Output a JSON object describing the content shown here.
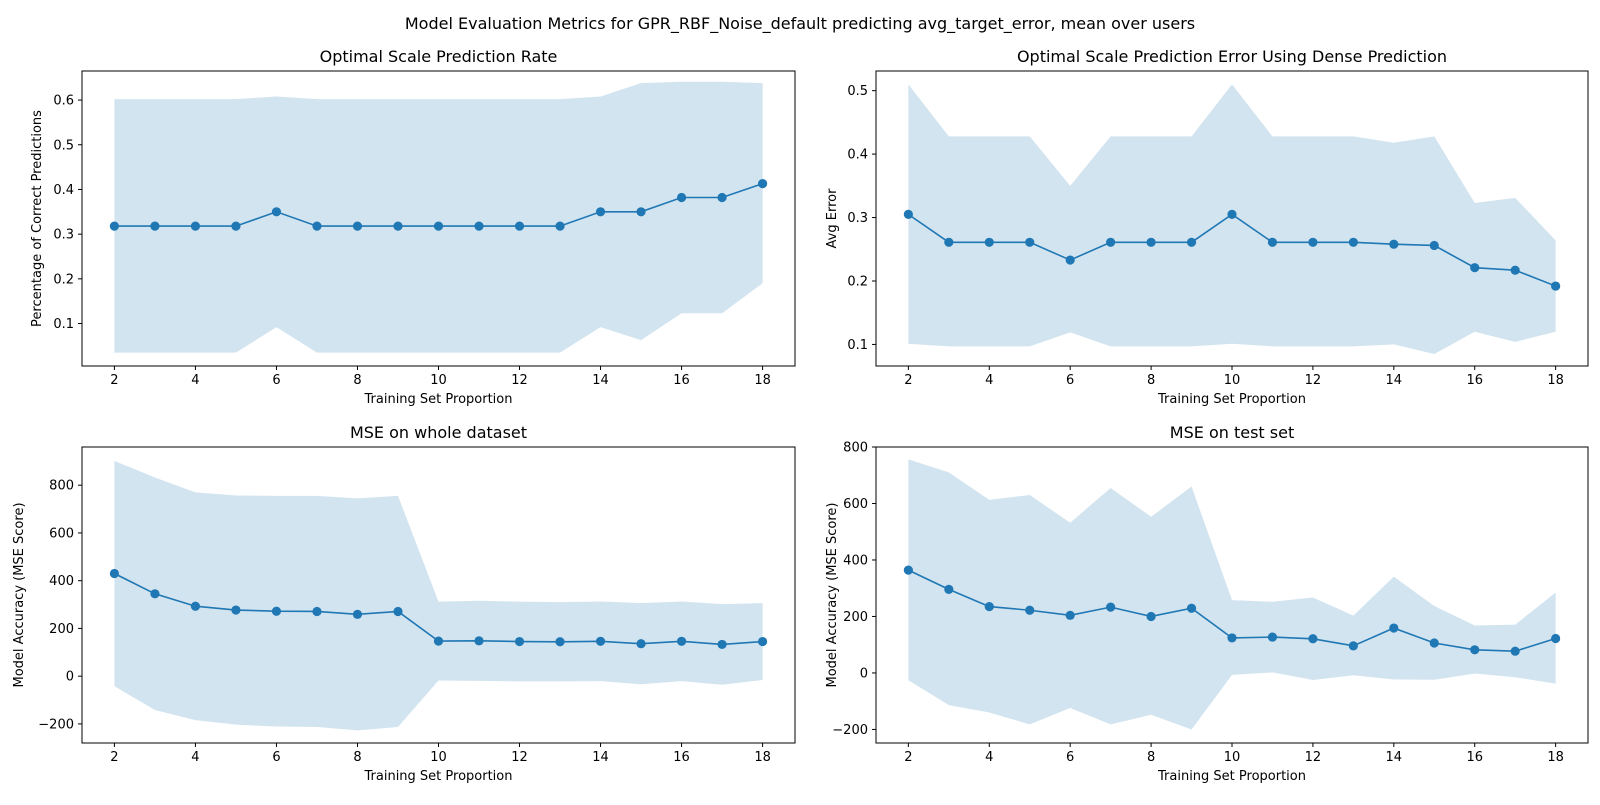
{
  "figure": {
    "title": "Model Evaluation Metrics for GPR_RBF_Noise_default predicting avg_target_error, mean over users"
  },
  "colors": {
    "line": "#1f77b4",
    "band": "#1f77b4",
    "band_opacity": 0.2,
    "axes": "#000000",
    "background": "#ffffff"
  },
  "chart_data": [
    {
      "type": "line",
      "title": "Optimal Scale Prediction Rate",
      "xlabel": "Training Set Proportion",
      "ylabel": "Percentage of Correct Predictions",
      "xlim": [
        1.2,
        18.8
      ],
      "ylim": [
        0.005,
        0.665
      ],
      "xticks": [
        2,
        4,
        6,
        8,
        10,
        12,
        14,
        16,
        18
      ],
      "yticks": [
        0.1,
        0.2,
        0.3,
        0.4,
        0.5,
        0.6
      ],
      "ytick_labels": [
        "0.1",
        "0.2",
        "0.3",
        "0.4",
        "0.5",
        "0.6"
      ],
      "grid": false,
      "x": [
        2,
        3,
        4,
        5,
        6,
        7,
        8,
        9,
        10,
        11,
        12,
        13,
        14,
        15,
        16,
        17,
        18
      ],
      "series": [
        {
          "values": [
            0.318,
            0.318,
            0.318,
            0.318,
            0.35,
            0.318,
            0.318,
            0.318,
            0.318,
            0.318,
            0.318,
            0.318,
            0.35,
            0.35,
            0.382,
            0.382,
            0.413
          ],
          "upper": [
            0.602,
            0.602,
            0.602,
            0.602,
            0.608,
            0.602,
            0.602,
            0.602,
            0.602,
            0.602,
            0.602,
            0.602,
            0.608,
            0.638,
            0.641,
            0.641,
            0.638
          ],
          "lower": [
            0.035,
            0.035,
            0.035,
            0.035,
            0.092,
            0.035,
            0.035,
            0.035,
            0.035,
            0.035,
            0.035,
            0.035,
            0.092,
            0.063,
            0.123,
            0.123,
            0.19
          ]
        }
      ]
    },
    {
      "type": "line",
      "title": "Optimal Scale Prediction Error Using Dense Prediction",
      "xlabel": "Training Set Proportion",
      "ylabel": "Avg Error",
      "xlim": [
        1.2,
        18.8
      ],
      "ylim": [
        0.066,
        0.531
      ],
      "xticks": [
        2,
        4,
        6,
        8,
        10,
        12,
        14,
        16,
        18
      ],
      "yticks": [
        0.1,
        0.2,
        0.3,
        0.4,
        0.5
      ],
      "ytick_labels": [
        "0.1",
        "0.2",
        "0.3",
        "0.4",
        "0.5"
      ],
      "grid": false,
      "x": [
        2,
        3,
        4,
        5,
        6,
        7,
        8,
        9,
        10,
        11,
        12,
        13,
        14,
        15,
        16,
        17,
        18
      ],
      "series": [
        {
          "values": [
            0.305,
            0.261,
            0.261,
            0.261,
            0.233,
            0.261,
            0.261,
            0.261,
            0.305,
            0.261,
            0.261,
            0.261,
            0.258,
            0.256,
            0.221,
            0.217,
            0.192
          ],
          "upper": [
            0.51,
            0.428,
            0.428,
            0.428,
            0.35,
            0.428,
            0.428,
            0.428,
            0.51,
            0.428,
            0.428,
            0.428,
            0.418,
            0.428,
            0.323,
            0.331,
            0.264
          ],
          "lower": [
            0.101,
            0.097,
            0.097,
            0.097,
            0.119,
            0.097,
            0.097,
            0.097,
            0.101,
            0.097,
            0.097,
            0.097,
            0.1,
            0.085,
            0.12,
            0.104,
            0.12
          ]
        }
      ]
    },
    {
      "type": "line",
      "title": "MSE on whole dataset",
      "xlabel": "Training Set Proportion",
      "ylabel": "Model Accuracy (MSE Score)",
      "xlim": [
        1.2,
        18.8
      ],
      "ylim": [
        -280,
        960
      ],
      "xticks": [
        2,
        4,
        6,
        8,
        10,
        12,
        14,
        16,
        18
      ],
      "yticks": [
        -200,
        0,
        200,
        400,
        600,
        800
      ],
      "ytick_labels": [
        "−200",
        "0",
        "200",
        "400",
        "600",
        "800"
      ],
      "grid": false,
      "x": [
        2,
        3,
        4,
        5,
        6,
        7,
        8,
        9,
        10,
        11,
        12,
        13,
        14,
        15,
        16,
        17,
        18
      ],
      "series": [
        {
          "values": [
            430,
            345,
            293,
            277,
            272,
            271,
            259,
            271,
            147,
            148,
            145,
            144,
            146,
            136,
            146,
            133,
            145
          ],
          "upper": [
            902,
            832,
            770,
            757,
            755,
            755,
            745,
            755,
            312,
            316,
            312,
            310,
            313,
            306,
            313,
            302,
            306
          ],
          "lower": [
            -42,
            -142,
            -184,
            -203,
            -211,
            -213,
            -227,
            -213,
            -18,
            -20,
            -22,
            -22,
            -21,
            -34,
            -21,
            -36,
            -16
          ]
        }
      ]
    },
    {
      "type": "line",
      "title": "MSE on test set",
      "xlabel": "Training Set Proportion",
      "ylabel": "Model Accuracy (MSE Score)",
      "xlim": [
        1.2,
        18.8
      ],
      "ylim": [
        -248,
        800
      ],
      "xticks": [
        2,
        4,
        6,
        8,
        10,
        12,
        14,
        16,
        18
      ],
      "yticks": [
        -200,
        0,
        200,
        400,
        600,
        800
      ],
      "ytick_labels": [
        "−200",
        "0",
        "200",
        "400",
        "600",
        "800"
      ],
      "grid": false,
      "x": [
        2,
        3,
        4,
        5,
        6,
        7,
        8,
        9,
        10,
        11,
        12,
        13,
        14,
        15,
        16,
        17,
        18
      ],
      "series": [
        {
          "values": [
            364,
            296,
            235,
            222,
            204,
            233,
            200,
            229,
            124,
            127,
            121,
            96,
            159,
            106,
            82,
            77,
            122
          ],
          "upper": [
            756,
            710,
            613,
            630,
            532,
            655,
            553,
            660,
            258,
            252,
            267,
            203,
            341,
            237,
            168,
            171,
            285
          ],
          "lower": [
            -26,
            -114,
            -140,
            -182,
            -124,
            -182,
            -148,
            -200,
            -7,
            2,
            -25,
            -8,
            -23,
            -24,
            -2,
            -15,
            -38
          ]
        }
      ]
    }
  ]
}
